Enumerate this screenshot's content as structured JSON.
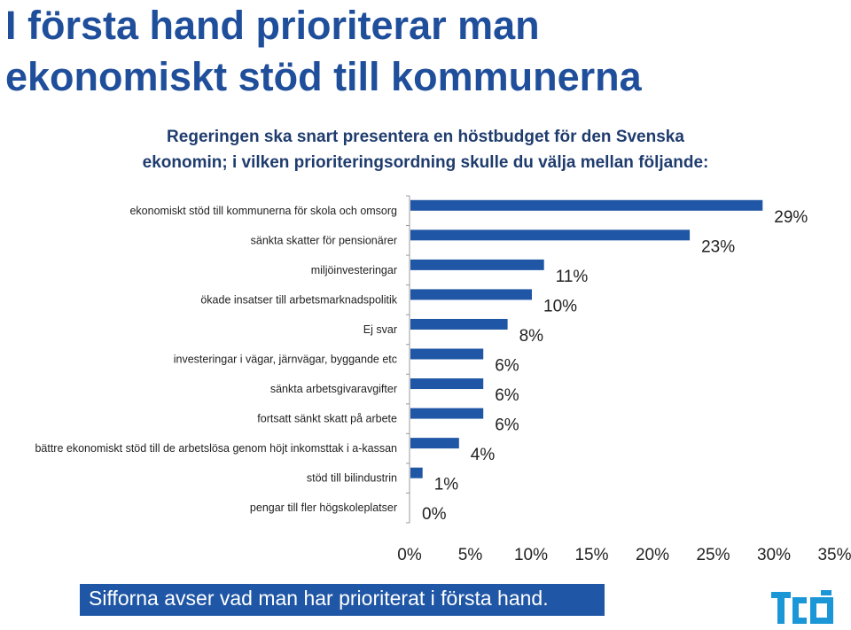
{
  "page": {
    "title_line1": "I första hand prioriterar man",
    "title_line2": "ekonomiskt stöd till kommunerna",
    "subtitle_line1": "Regeringen ska snart presentera en höstbudget för den Svenska",
    "subtitle_line2": "ekonomin; i vilken prioriteringsordning skulle du välja mellan följande:",
    "footer": "Sifforna avser vad man har prioriterat i första hand.",
    "logo_text": "TCO",
    "colors": {
      "title": "#1f4e9b",
      "bar": "#1f56a5",
      "footer_bg": "#1f56a5",
      "logo": "#1b96d6"
    }
  },
  "chart_data": {
    "type": "bar",
    "orientation": "horizontal",
    "categories": [
      "ekonomiskt stöd till kommunerna för skola och omsorg",
      "sänkta skatter för pensionärer",
      "miljöinvesteringar",
      "ökade insatser till arbetsmarknadspolitik",
      "Ej svar",
      "investeringar i vägar, järnvägar, byggande etc",
      "sänkta arbetsgivaravgifter",
      "fortsatt sänkt skatt på arbete",
      "bättre ekonomiskt stöd till de arbetslösa genom höjt inkomsttak i a-kassan",
      "stöd till bilindustrin",
      "pengar till fler högskoleplatser"
    ],
    "values": [
      29,
      23,
      11,
      10,
      8,
      6,
      6,
      6,
      4,
      1,
      0
    ],
    "value_labels": [
      "29%",
      "23%",
      "11%",
      "10%",
      "8%",
      "6%",
      "6%",
      "6%",
      "4%",
      "1%",
      "0%"
    ],
    "xlim": [
      0,
      35
    ],
    "x_ticks": [
      0,
      5,
      10,
      15,
      20,
      25,
      30,
      35
    ],
    "x_tick_labels": [
      "0%",
      "5%",
      "10%",
      "15%",
      "20%",
      "25%",
      "30%",
      "35%"
    ],
    "grid": false,
    "legend": "none"
  }
}
